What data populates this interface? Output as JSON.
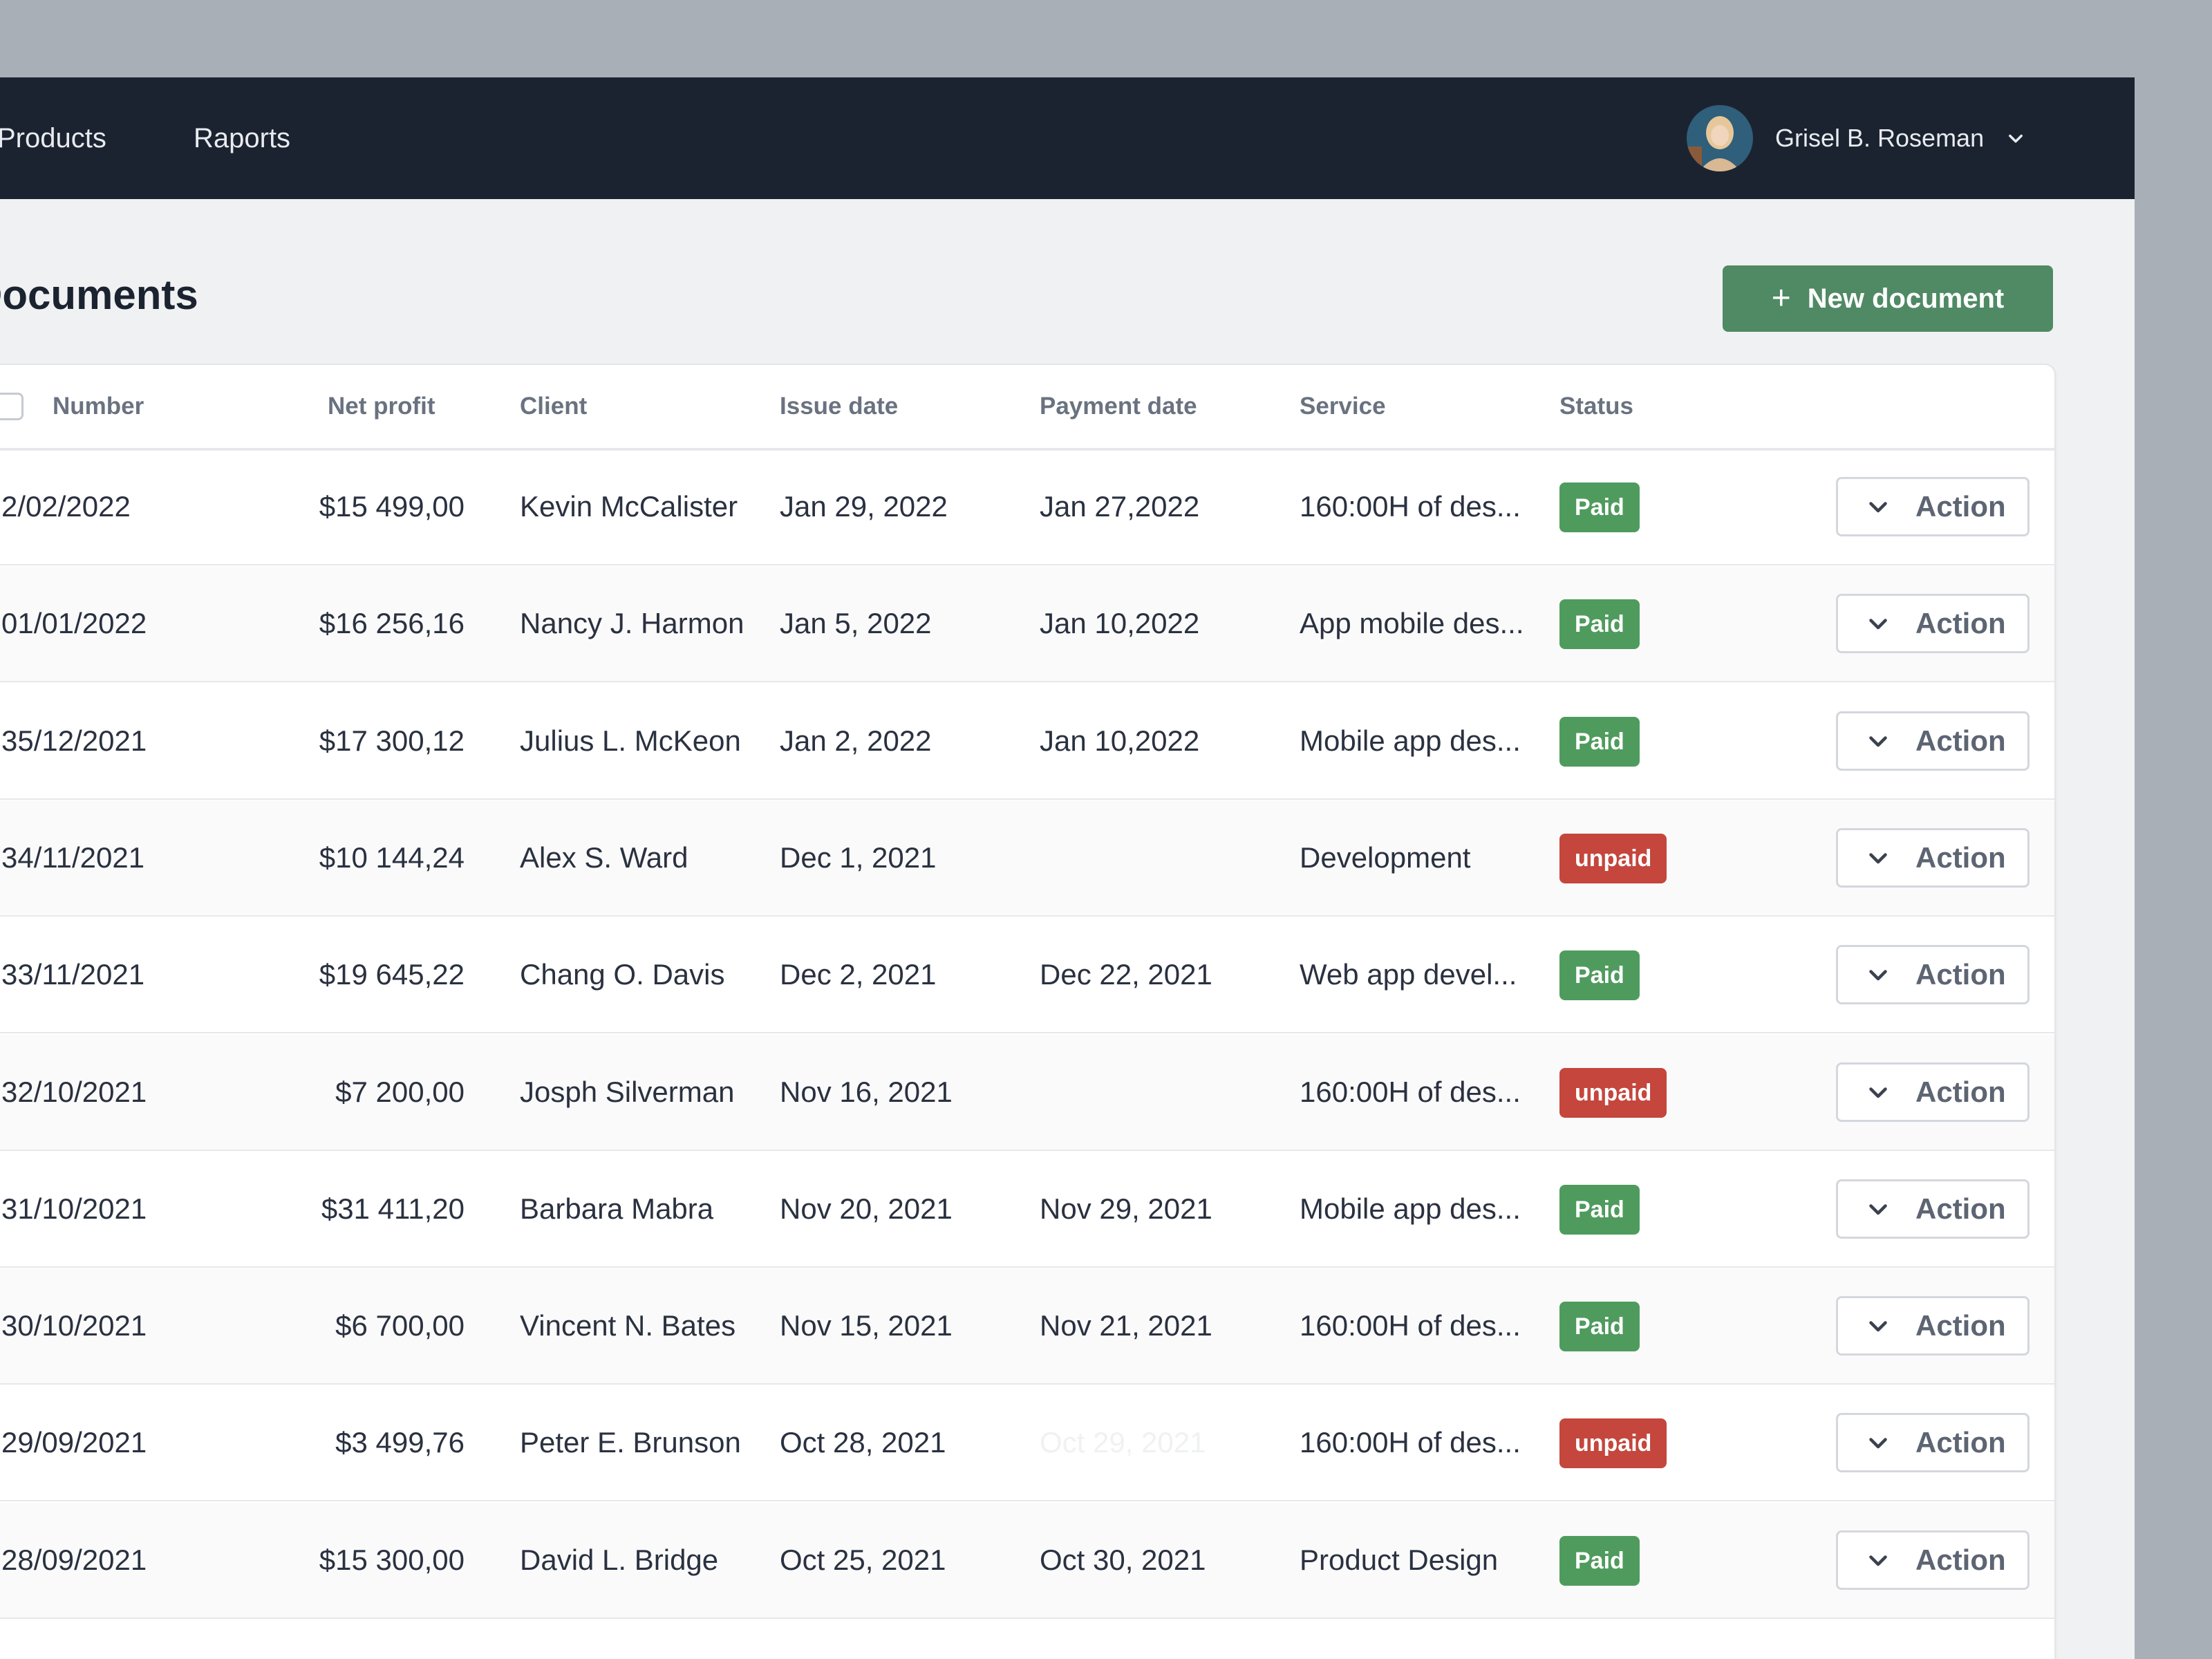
{
  "nav": {
    "items": [
      "Products",
      "Raports"
    ],
    "user_name": "Grisel B. Roseman"
  },
  "page": {
    "title": "Documents",
    "new_button_label": "New document"
  },
  "table": {
    "columns": {
      "number": "Number",
      "net_profit": "Net profit",
      "client": "Client",
      "issue_date": "Issue date",
      "payment_date": "Payment date",
      "service": "Service",
      "status": "Status"
    },
    "action_label": "Action",
    "rows": [
      {
        "number": "2/02/2022",
        "net_profit": "$15 499,00",
        "client": "Kevin McCalister",
        "issue_date": "Jan 29, 2022",
        "payment_date": "Jan 27,2022",
        "service": "160:00H of des...",
        "status": "Paid"
      },
      {
        "number": "01/01/2022",
        "net_profit": "$16 256,16",
        "client": "Nancy J. Harmon",
        "issue_date": "Jan 5, 2022",
        "payment_date": "Jan 10,2022",
        "service": "App mobile des...",
        "status": "Paid"
      },
      {
        "number": "35/12/2021",
        "net_profit": "$17 300,12",
        "client": "Julius L. McKeon",
        "issue_date": "Jan 2, 2022",
        "payment_date": "Jan 10,2022",
        "service": "Mobile app des...",
        "status": "Paid"
      },
      {
        "number": "34/11/2021",
        "net_profit": "$10 144,24",
        "client": "Alex S. Ward",
        "issue_date": "Dec 1, 2021",
        "payment_date": "",
        "service": "Development",
        "status": "unpaid"
      },
      {
        "number": "33/11/2021",
        "net_profit": "$19 645,22",
        "client": "Chang O. Davis",
        "issue_date": "Dec 2, 2021",
        "payment_date": "Dec 22, 2021",
        "service": "Web app devel...",
        "status": "Paid"
      },
      {
        "number": "32/10/2021",
        "net_profit": "$7 200,00",
        "client": "Josph Silverman",
        "issue_date": "Nov 16, 2021",
        "payment_date": "",
        "service": "160:00H of des...",
        "status": "unpaid"
      },
      {
        "number": "31/10/2021",
        "net_profit": "$31 411,20",
        "client": "Barbara Mabra",
        "issue_date": "Nov 20, 2021",
        "payment_date": "Nov 29, 2021",
        "service": "Mobile app des...",
        "status": "Paid"
      },
      {
        "number": "30/10/2021",
        "net_profit": "$6 700,00",
        "client": "Vincent N. Bates",
        "issue_date": "Nov 15, 2021",
        "payment_date": "Nov 21, 2021",
        "service": "160:00H of des...",
        "status": "Paid"
      },
      {
        "number": "29/09/2021",
        "net_profit": "$3 499,76",
        "client": "Peter E. Brunson",
        "issue_date": "Oct 28, 2021",
        "payment_date": "Oct 29, 2021",
        "payment_date_faded": true,
        "service": "160:00H of des...",
        "status": "unpaid"
      },
      {
        "number": "28/09/2021",
        "net_profit": "$15 300,00",
        "client": "David L. Bridge",
        "issue_date": "Oct 25, 2021",
        "payment_date": "Oct 30, 2021",
        "service": "Product Design",
        "status": "Paid"
      }
    ]
  },
  "colors": {
    "nav_bg": "#1c2330",
    "page_bg": "#f0f1f3",
    "primary": "#4f8a64",
    "paid": "#4f9b5e",
    "unpaid": "#c4463d"
  },
  "icons": {
    "new_button": "plus-icon",
    "user_menu": "chevron-down-icon",
    "action": "chevron-down-icon"
  }
}
